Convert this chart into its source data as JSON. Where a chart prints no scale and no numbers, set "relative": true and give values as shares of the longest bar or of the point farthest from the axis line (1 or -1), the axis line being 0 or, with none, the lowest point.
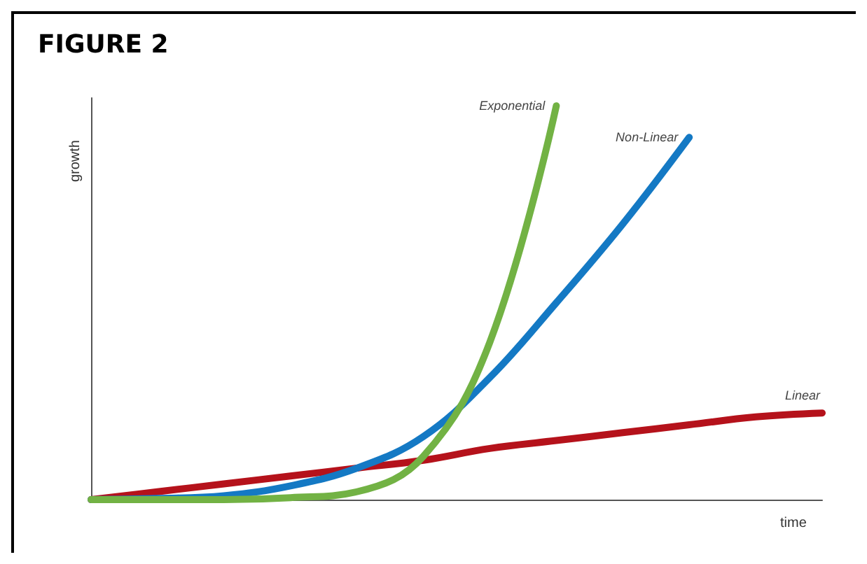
{
  "chart_data": {
    "type": "line",
    "title": "FIGURE 2",
    "xlabel": "time",
    "ylabel": "growth",
    "relative": true,
    "legend": false,
    "grid": false,
    "marker": "none",
    "line_style": "solid",
    "categories": [
      null,
      null,
      null,
      null,
      null,
      null,
      null,
      null,
      null,
      null,
      null,
      null
    ],
    "series": [
      {
        "name": "Linear",
        "color": "#b5121b",
        "values": [
          0,
          0.02,
          0.04,
          0.06,
          0.08,
          0.1,
          0.13,
          0.15,
          0.17,
          0.19,
          0.21,
          0.22
        ]
      },
      {
        "name": "Non-Linear",
        "color": "#1479c4",
        "values": [
          0,
          0.003,
          0.01,
          0.035,
          0.08,
          0.16,
          0.31,
          0.5,
          0.7,
          0.92,
          null,
          null
        ]
      },
      {
        "name": "Exponential",
        "color": "#72b244",
        "values": [
          0,
          0,
          0,
          0.005,
          0.02,
          0.11,
          0.4,
          1,
          null,
          null,
          null,
          null
        ]
      }
    ]
  }
}
